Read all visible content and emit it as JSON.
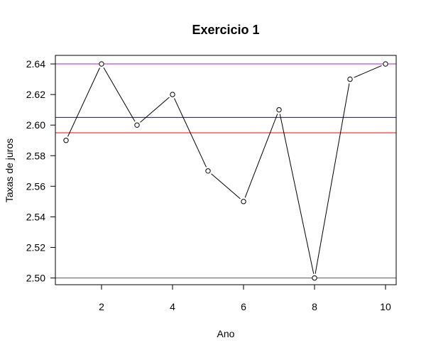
{
  "chart_data": {
    "type": "line",
    "title": "Exercicio 1",
    "xlabel": "Ano",
    "ylabel": "Taxas de juros",
    "xlim": [
      0.7,
      10.3
    ],
    "ylim": [
      2.4956,
      2.6456
    ],
    "x_ticks": [
      2,
      4,
      6,
      8,
      10
    ],
    "y_ticks": [
      2.5,
      2.52,
      2.54,
      2.56,
      2.58,
      2.6,
      2.62,
      2.64
    ],
    "y_tick_labels": [
      "2.50",
      "2.52",
      "2.54",
      "2.56",
      "2.58",
      "2.60",
      "2.62",
      "2.64"
    ],
    "grid": false,
    "series": [
      {
        "x": [
          1,
          2,
          3,
          4,
          5,
          6,
          7,
          8,
          9,
          10
        ],
        "values": [
          2.59,
          2.64,
          2.6,
          2.62,
          2.57,
          2.55,
          2.61,
          2.5,
          2.63,
          2.64
        ],
        "color": "#000000",
        "marker": "open-circle"
      }
    ],
    "reference_lines": [
      {
        "y": 2.64,
        "color": "#a020f0"
      },
      {
        "y": 2.605,
        "color": "#0000ff"
      },
      {
        "y": 2.595,
        "color": "#ff0000"
      },
      {
        "y": 2.5,
        "color": "#a020f0"
      }
    ]
  }
}
